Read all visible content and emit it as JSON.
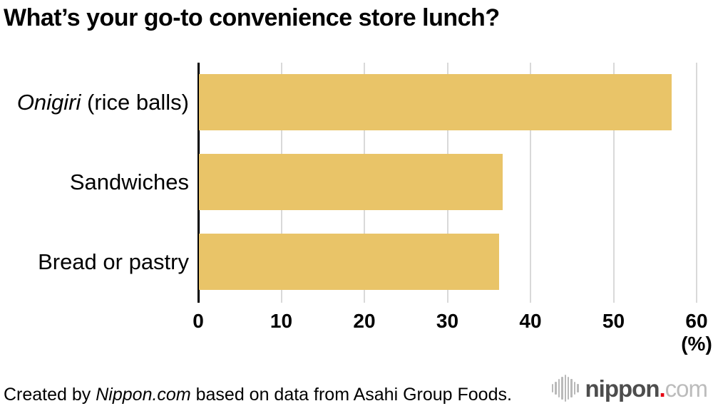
{
  "title": "What’s your go-to convenience store lunch?",
  "chart_data": {
    "type": "bar",
    "orientation": "horizontal",
    "title": "What’s your go-to convenience store lunch?",
    "categories": [
      "Onigiri (rice balls)",
      "Sandwiches",
      "Bread or pastry"
    ],
    "categories_rich": [
      {
        "italic": "Onigiri",
        "rest": " (rice balls)"
      },
      {
        "italic": "",
        "rest": "Sandwiches"
      },
      {
        "italic": "",
        "rest": "Bread or pastry"
      }
    ],
    "values": [
      56.9,
      36.6,
      36.1
    ],
    "xlabel": "(%)",
    "ylabel": "",
    "xlim": [
      0,
      60
    ],
    "x_ticks": [
      0,
      10,
      20,
      30,
      40,
      50,
      60
    ],
    "grid": true,
    "legend": false,
    "bar_color": "#e9c468",
    "gridline_color": "#d9d9d9",
    "axis_color": "#000000"
  },
  "footer": {
    "credit_prefix": "Created by ",
    "credit_brand_italic": "Nippon.com",
    "credit_suffix": " based on data from Asahi Group Foods.",
    "logo": {
      "icon": "soundwave-bars-icon",
      "icon_bar_heights": [
        12,
        18,
        26,
        32,
        38,
        32,
        26,
        18,
        12
      ],
      "icon_color": "#b9b9b9",
      "text_bold": "nippon",
      "text_dot": ".",
      "text_light": "com",
      "color_bold": "#4d4d4d",
      "color_dot": "#e60012",
      "color_light": "#bcbcbc"
    }
  }
}
